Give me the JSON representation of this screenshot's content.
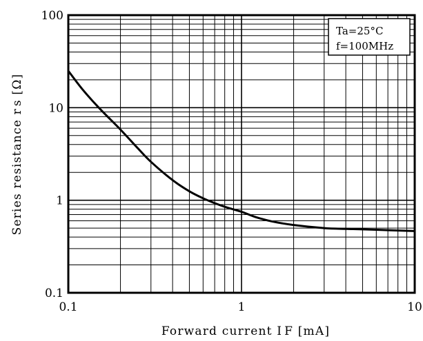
{
  "chart_data": {
    "type": "line",
    "x_scale": "log",
    "y_scale": "log",
    "xlim": [
      0.1,
      10
    ],
    "ylim": [
      0.1,
      100
    ],
    "grid": true,
    "legend_position": "top-right",
    "xlabel": "Forward current I F [mA]",
    "ylabel": "Series resistance r s [Ω]",
    "x_ticks": [
      {
        "value": 0.1,
        "label": "0.1"
      },
      {
        "value": 1,
        "label": "1"
      },
      {
        "value": 10,
        "label": "10"
      }
    ],
    "y_ticks": [
      {
        "value": 0.1,
        "label": "0.1"
      },
      {
        "value": 1,
        "label": "1"
      },
      {
        "value": 10,
        "label": "10"
      },
      {
        "value": 100,
        "label": "100"
      }
    ],
    "annotations": [
      "Ta=25°C",
      "f=100MHz"
    ],
    "series": [
      {
        "x": [
          0.1,
          0.12,
          0.15,
          0.2,
          0.25,
          0.3,
          0.4,
          0.5,
          0.6,
          0.7,
          0.8,
          1.0,
          1.2,
          1.5,
          2.0,
          3.0,
          4.0,
          5.0,
          7.0,
          10.0
        ],
        "y": [
          25,
          16,
          10,
          5.8,
          3.7,
          2.6,
          1.65,
          1.25,
          1.05,
          0.93,
          0.85,
          0.75,
          0.66,
          0.59,
          0.54,
          0.5,
          0.49,
          0.485,
          0.475,
          0.465
        ],
        "color": "#000000"
      }
    ]
  }
}
